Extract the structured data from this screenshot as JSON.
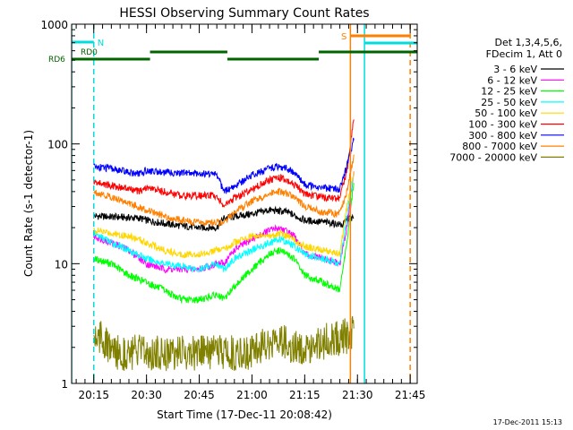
{
  "chart_data": {
    "type": "line",
    "title": "HESSI Observing Summary Count Rates",
    "ylabel": "Count Rate (s-1 detector-1)",
    "xlabel": "Start Time (17-Dec-11 20:08:42)",
    "xlim": [
      "20:08:42",
      "21:47:00"
    ],
    "ylim": [
      1,
      1000
    ],
    "yscale": "log",
    "x_ticks": [
      "20:15",
      "20:30",
      "20:45",
      "21:00",
      "21:15",
      "21:30",
      "21:45"
    ],
    "y_ticks": [
      "1",
      "10",
      "100",
      "1000"
    ],
    "legend_header": [
      "Det 1,3,4,5,6,",
      "FDecim 1, Att 0"
    ],
    "legend_position": "right",
    "series": [
      {
        "name": "3 - 6 keV",
        "color": "#000000",
        "points": [
          [
            "20:15",
            25
          ],
          [
            "20:28",
            24
          ],
          [
            "20:30",
            23
          ],
          [
            "20:38",
            21
          ],
          [
            "20:45",
            20
          ],
          [
            "20:50",
            20
          ],
          [
            "20:52",
            24
          ],
          [
            "21:00",
            26
          ],
          [
            "21:05",
            28
          ],
          [
            "21:10",
            27
          ],
          [
            "21:15",
            23
          ],
          [
            "21:22",
            22
          ],
          [
            "21:26",
            21
          ],
          [
            "21:27",
            24
          ],
          [
            "21:29",
            24
          ]
        ]
      },
      {
        "name": "6 - 12 keV",
        "color": "#ff00ff",
        "points": [
          [
            "20:15",
            17
          ],
          [
            "20:20",
            15
          ],
          [
            "20:25",
            13
          ],
          [
            "20:30",
            10
          ],
          [
            "20:35",
            9
          ],
          [
            "20:40",
            9
          ],
          [
            "20:45",
            9
          ],
          [
            "20:50",
            10
          ],
          [
            "20:52",
            10
          ],
          [
            "20:55",
            13
          ],
          [
            "21:00",
            16
          ],
          [
            "21:05",
            19
          ],
          [
            "21:08",
            20
          ],
          [
            "21:12",
            17
          ],
          [
            "21:15",
            12
          ],
          [
            "21:20",
            11
          ],
          [
            "21:25",
            10
          ],
          [
            "21:27",
            20
          ],
          [
            "21:29",
            60
          ]
        ]
      },
      {
        "name": "12 - 25 keV",
        "color": "#00ff00",
        "points": [
          [
            "20:15",
            11
          ],
          [
            "20:20",
            10
          ],
          [
            "20:25",
            8
          ],
          [
            "20:30",
            7
          ],
          [
            "20:35",
            6
          ],
          [
            "20:40",
            5
          ],
          [
            "20:45",
            5
          ],
          [
            "20:50",
            5.5
          ],
          [
            "20:52",
            5
          ],
          [
            "20:55",
            6.5
          ],
          [
            "21:00",
            9
          ],
          [
            "21:05",
            12
          ],
          [
            "21:08",
            13
          ],
          [
            "21:12",
            11
          ],
          [
            "21:15",
            8
          ],
          [
            "21:20",
            7
          ],
          [
            "21:25",
            6
          ],
          [
            "21:27",
            15
          ],
          [
            "21:29",
            50
          ]
        ]
      },
      {
        "name": "25 - 50 keV",
        "color": "#00ffff",
        "points": [
          [
            "20:15",
            18
          ],
          [
            "20:20",
            15
          ],
          [
            "20:25",
            13
          ],
          [
            "20:30",
            11
          ],
          [
            "20:35",
            10
          ],
          [
            "20:40",
            9.5
          ],
          [
            "20:45",
            9
          ],
          [
            "20:50",
            10
          ],
          [
            "20:52",
            9
          ],
          [
            "20:55",
            11
          ],
          [
            "21:00",
            13
          ],
          [
            "21:05",
            15
          ],
          [
            "21:08",
            16
          ],
          [
            "21:12",
            14
          ],
          [
            "21:15",
            12
          ],
          [
            "21:20",
            11
          ],
          [
            "21:25",
            10
          ],
          [
            "21:27",
            25
          ],
          [
            "21:29",
            55
          ]
        ]
      },
      {
        "name": "50 - 100 keV",
        "color": "#ffd700",
        "points": [
          [
            "20:15",
            19
          ],
          [
            "20:20",
            18
          ],
          [
            "20:25",
            17
          ],
          [
            "20:30",
            15
          ],
          [
            "20:35",
            13
          ],
          [
            "20:40",
            12
          ],
          [
            "20:45",
            12
          ],
          [
            "20:50",
            13
          ],
          [
            "20:52",
            13
          ],
          [
            "20:55",
            15
          ],
          [
            "21:00",
            17
          ],
          [
            "21:05",
            17
          ],
          [
            "21:08",
            18
          ],
          [
            "21:12",
            16
          ],
          [
            "21:15",
            14
          ],
          [
            "21:20",
            13
          ],
          [
            "21:25",
            12
          ],
          [
            "21:27",
            30
          ],
          [
            "21:29",
            60
          ]
        ]
      },
      {
        "name": "100 - 300 keV",
        "color": "#ff0000",
        "points": [
          [
            "20:15",
            48
          ],
          [
            "20:20",
            45
          ],
          [
            "20:25",
            42
          ],
          [
            "20:28",
            40
          ],
          [
            "20:30",
            43
          ],
          [
            "20:35",
            40
          ],
          [
            "20:40",
            37
          ],
          [
            "20:45",
            37
          ],
          [
            "20:50",
            37
          ],
          [
            "20:52",
            30
          ],
          [
            "20:55",
            35
          ],
          [
            "21:00",
            42
          ],
          [
            "21:05",
            50
          ],
          [
            "21:08",
            52
          ],
          [
            "21:12",
            46
          ],
          [
            "21:15",
            38
          ],
          [
            "21:20",
            36
          ],
          [
            "21:25",
            35
          ],
          [
            "21:27",
            60
          ],
          [
            "21:29",
            170
          ]
        ]
      },
      {
        "name": "300 - 800 keV",
        "color": "#0000ff",
        "points": [
          [
            "20:15",
            65
          ],
          [
            "20:20",
            62
          ],
          [
            "20:25",
            58
          ],
          [
            "20:28",
            56
          ],
          [
            "20:30",
            60
          ],
          [
            "20:35",
            58
          ],
          [
            "20:40",
            57
          ],
          [
            "20:45",
            57
          ],
          [
            "20:50",
            56
          ],
          [
            "20:52",
            40
          ],
          [
            "20:55",
            44
          ],
          [
            "21:00",
            55
          ],
          [
            "21:05",
            62
          ],
          [
            "21:08",
            65
          ],
          [
            "21:12",
            58
          ],
          [
            "21:15",
            46
          ],
          [
            "21:20",
            43
          ],
          [
            "21:25",
            42
          ],
          [
            "21:27",
            65
          ],
          [
            "21:29",
            110
          ]
        ]
      },
      {
        "name": "800 - 7000 keV",
        "color": "#ff8000",
        "points": [
          [
            "20:15",
            40
          ],
          [
            "20:20",
            36
          ],
          [
            "20:25",
            32
          ],
          [
            "20:30",
            28
          ],
          [
            "20:35",
            25
          ],
          [
            "20:40",
            23
          ],
          [
            "20:45",
            22
          ],
          [
            "20:50",
            22
          ],
          [
            "20:52",
            22
          ],
          [
            "20:55",
            27
          ],
          [
            "21:00",
            33
          ],
          [
            "21:05",
            38
          ],
          [
            "21:08",
            40
          ],
          [
            "21:12",
            36
          ],
          [
            "21:15",
            30
          ],
          [
            "21:20",
            27
          ],
          [
            "21:25",
            26
          ],
          [
            "21:27",
            40
          ],
          [
            "21:29",
            80
          ]
        ]
      },
      {
        "name": "7000 - 20000 keV",
        "color": "#808000",
        "points": [
          [
            "20:15",
            2.5
          ],
          [
            "20:17",
            2.5
          ],
          [
            "20:19",
            2
          ],
          [
            "20:21",
            1.8
          ],
          [
            "21:01",
            1.8
          ],
          [
            "21:03",
            2.2
          ],
          [
            "21:05",
            2
          ],
          [
            "21:07",
            2.6
          ],
          [
            "21:09",
            2.3
          ],
          [
            "21:11",
            1.9
          ],
          [
            "21:27",
            2.5
          ],
          [
            "21:29",
            2.8
          ]
        ]
      }
    ],
    "state_bars": [
      {
        "label": "RD0",
        "color": "#006400",
        "segments": [
          [
            "20:08:42",
            "20:31"
          ],
          [
            "20:31",
            "20:53"
          ],
          [
            "20:53",
            "21:19"
          ],
          [
            "21:19",
            "21:47"
          ]
        ]
      },
      {
        "label": "RD6",
        "color": "#006400",
        "segments": []
      }
    ],
    "markers": [
      {
        "label": "N",
        "color": "#00dddd",
        "segments": [
          [
            "20:08:42",
            "20:15"
          ]
        ]
      },
      {
        "label": "S",
        "color": "#ff8000",
        "segments": [
          [
            "21:28",
            "21:45"
          ]
        ]
      }
    ],
    "vertical_lines": [
      {
        "time": "20:08:42",
        "color": "#00dddd",
        "style": "solid"
      },
      {
        "time": "20:15",
        "color": "#00dddd",
        "style": "dashed"
      },
      {
        "time": "21:28",
        "color": "#ff8000",
        "style": "solid"
      },
      {
        "time": "21:32",
        "color": "#00dddd",
        "style": "solid"
      },
      {
        "time": "21:45",
        "color": "#ff8000",
        "style": "dashed"
      }
    ]
  },
  "footer_timestamp": "17-Dec-2011 15:13"
}
